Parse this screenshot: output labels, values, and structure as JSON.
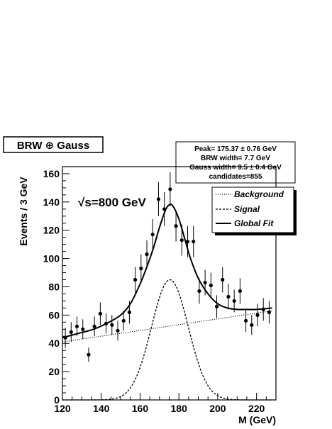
{
  "chart_data": {
    "type": "scatter",
    "title": "BRW ⊕ Gauss",
    "xlabel": "M (GeV)",
    "ylabel": "Events / 3 GeV",
    "xlim": [
      120,
      230
    ],
    "ylim": [
      0,
      165
    ],
    "x_ticks": [
      120,
      140,
      160,
      180,
      200,
      220
    ],
    "y_ticks": [
      0,
      20,
      40,
      60,
      80,
      100,
      120,
      140,
      160
    ],
    "annotation": "√s=800 GeV",
    "fit_stats": [
      "Peak= 175.37 ± 0.76 GeV",
      "BRW  width= 7.7 GeV",
      "Gauss width= 9.5 ±  0.4 GeV",
      "candidates=855"
    ],
    "legend_position": "top-right",
    "legend": [
      {
        "label": "Background",
        "style": "dotted"
      },
      {
        "label": "Signal",
        "style": "dashed"
      },
      {
        "label": "Global Fit",
        "style": "solid"
      }
    ],
    "data_points": {
      "x": [
        121.5,
        124.5,
        127.5,
        130.5,
        133.5,
        136.5,
        139.5,
        142.5,
        145.5,
        148.5,
        151.5,
        154.5,
        157.5,
        160.5,
        163.5,
        166.5,
        169.5,
        172.5,
        175.5,
        178.5,
        181.5,
        184.5,
        187.5,
        190.5,
        193.5,
        196.5,
        199.5,
        202.5,
        205.5,
        208.5,
        211.5,
        214.5,
        217.5,
        220.5,
        223.5,
        226.5
      ],
      "y": [
        44,
        48,
        52,
        50,
        32,
        52,
        61,
        54,
        53,
        49,
        56,
        62,
        85,
        93,
        103,
        117,
        142,
        135,
        149,
        123,
        113,
        112,
        112,
        77,
        83,
        81,
        66,
        85,
        73,
        70,
        77,
        56,
        53,
        60,
        64,
        62
      ],
      "err": [
        7,
        7,
        7,
        7,
        5,
        7,
        8,
        7,
        7,
        7,
        7,
        8,
        9,
        10,
        10,
        11,
        12,
        12,
        12,
        11,
        11,
        11,
        11,
        9,
        9,
        9,
        8,
        9,
        9,
        8,
        9,
        8,
        7,
        8,
        8,
        8
      ]
    },
    "curves": {
      "background": {
        "x": [
          120,
          228
        ],
        "y": [
          41,
          63
        ]
      },
      "signal": {
        "peak": 175.37,
        "sigma": 9.5,
        "amplitude": 85
      },
      "global_fit": {
        "x": [
          120,
          128,
          136,
          144,
          150,
          155,
          160,
          164,
          167,
          170,
          173,
          175,
          177,
          180,
          183,
          186,
          190,
          195,
          200,
          205,
          210,
          215,
          220,
          228
        ],
        "y": [
          44,
          47,
          50,
          55,
          60,
          68,
          82,
          96,
          108,
          122,
          134,
          138,
          137,
          128,
          114,
          100,
          86,
          75,
          68,
          65,
          64,
          64,
          64,
          65
        ]
      }
    }
  }
}
